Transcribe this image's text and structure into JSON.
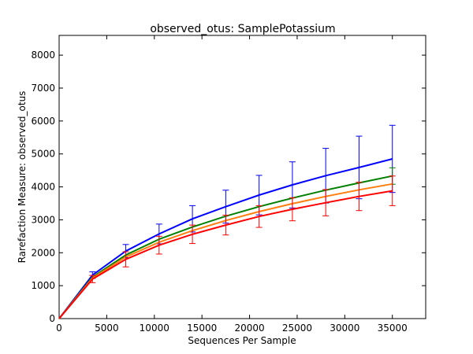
{
  "chart_data": {
    "type": "line",
    "title": "observed_otus: SamplePotassium",
    "xlabel": "Sequences Per Sample",
    "ylabel": "Rarefaction Measure: observed_otus",
    "xlim": [
      0,
      38500
    ],
    "ylim": [
      0,
      8600
    ],
    "xticks": [
      0,
      5000,
      10000,
      15000,
      20000,
      25000,
      30000,
      35000
    ],
    "yticks": [
      0,
      1000,
      2000,
      3000,
      4000,
      5000,
      6000,
      7000,
      8000
    ],
    "grid": false,
    "legend": "none",
    "x": [
      0,
      3500,
      7000,
      10500,
      14000,
      17500,
      21000,
      24500,
      28000,
      31500,
      35000
    ],
    "series": [
      {
        "color": "#0000ff",
        "values": [
          0,
          1320,
          2050,
          2570,
          3030,
          3400,
          3750,
          4060,
          4340,
          4590,
          4850
        ],
        "err": [
          0,
          100,
          200,
          300,
          400,
          500,
          600,
          700,
          830,
          950,
          1020
        ]
      },
      {
        "color": "#008000",
        "values": [
          0,
          1260,
          1930,
          2410,
          2780,
          3110,
          3400,
          3660,
          3900,
          4120,
          4330
        ],
        "err": [
          0,
          0,
          0,
          0,
          0,
          0,
          0,
          0,
          0,
          0,
          250
        ]
      },
      {
        "color": "#ff7f0e",
        "values": [
          0,
          1230,
          1870,
          2320,
          2670,
          2980,
          3250,
          3490,
          3710,
          3910,
          4090
        ],
        "err": [
          0,
          0,
          0,
          0,
          0,
          0,
          0,
          0,
          0,
          0,
          0
        ]
      },
      {
        "color": "#ff0000",
        "values": [
          0,
          1200,
          1800,
          2230,
          2560,
          2840,
          3100,
          3320,
          3520,
          3710,
          3880
        ],
        "err": [
          0,
          110,
          230,
          270,
          280,
          300,
          330,
          350,
          400,
          430,
          450
        ]
      }
    ]
  }
}
